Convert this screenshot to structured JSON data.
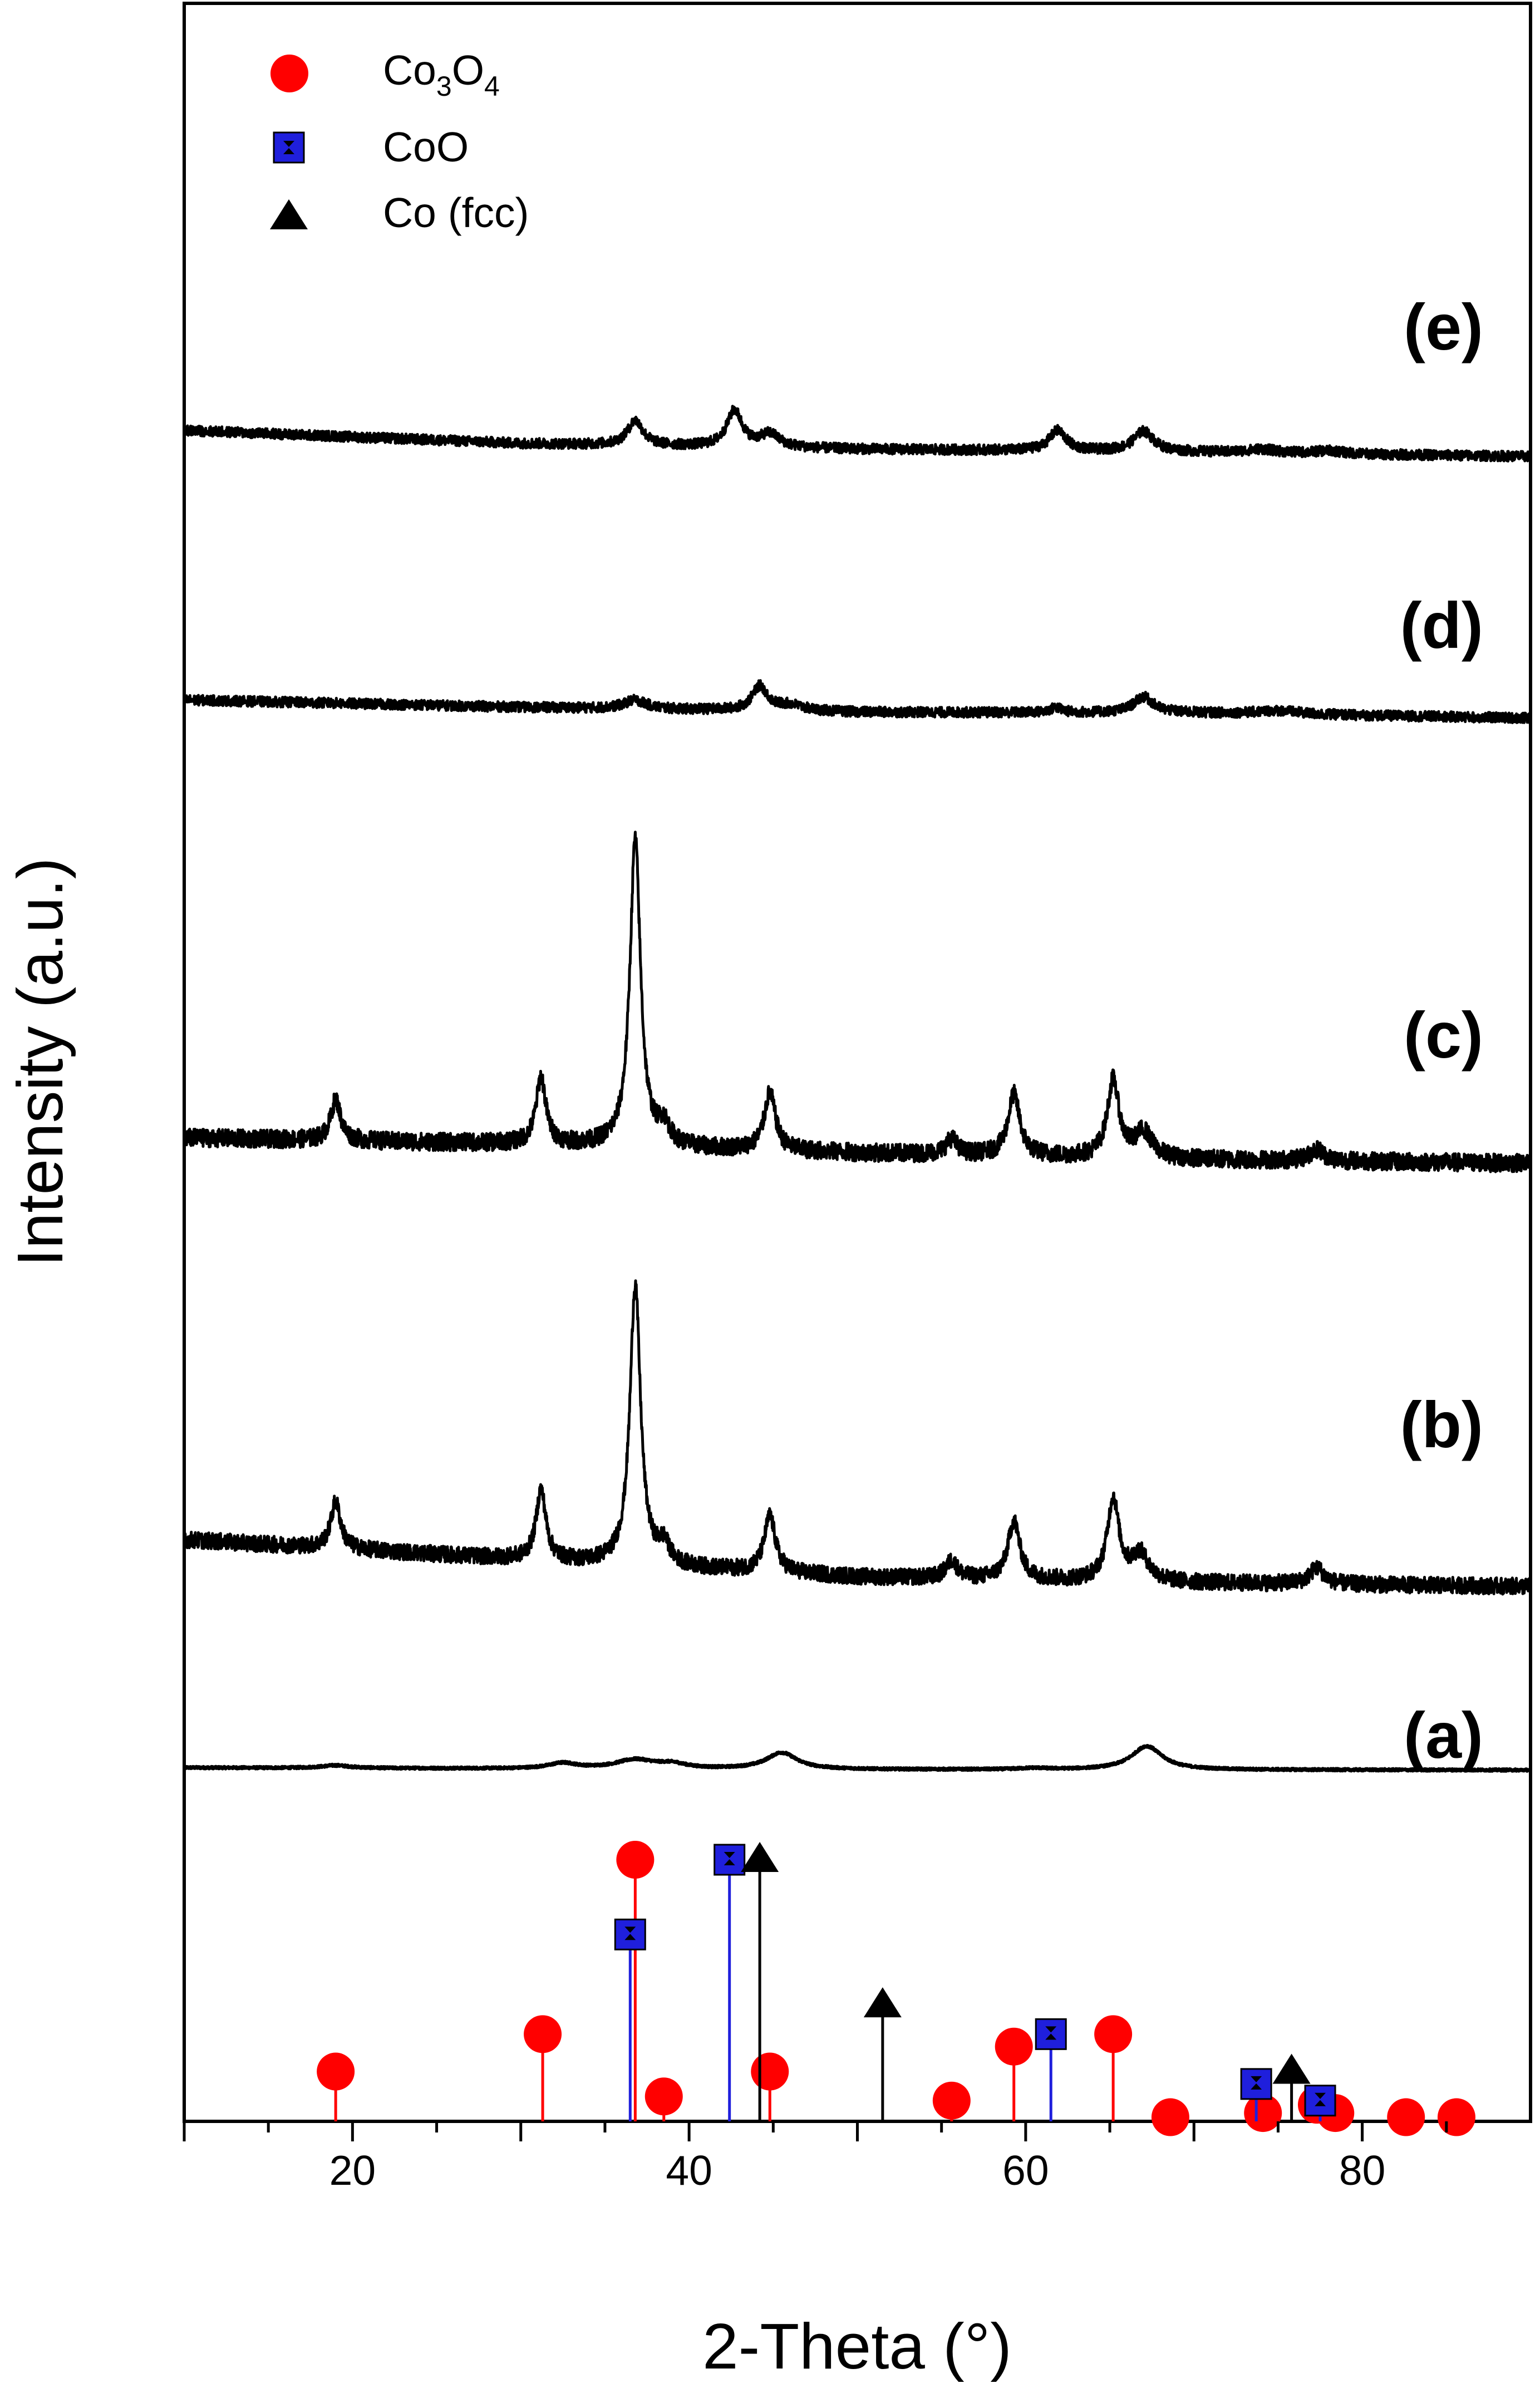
{
  "chart_data": {
    "type": "line",
    "title": "",
    "xlabel": "2-Theta (°)",
    "ylabel": "Intensity (a.u.)",
    "xlim": [
      10,
      90
    ],
    "xticks": [
      20,
      40,
      60,
      80
    ],
    "yticks": "none",
    "colors": {
      "co3o4": "#ff0000",
      "coo": "#1f1fdc",
      "co": "#000000",
      "trace": "#000000"
    },
    "legend": {
      "placement": "top-left",
      "entries": [
        {
          "key": "co3o4",
          "marker": "circle",
          "label_main": "Co",
          "sub1": "3",
          "label_mid": "O",
          "sub2": "4"
        },
        {
          "key": "coo",
          "marker": "square",
          "label": "CoO"
        },
        {
          "key": "co",
          "marker": "triangle",
          "label": "Co (fcc)"
        }
      ]
    },
    "series": [
      {
        "name": "(a)",
        "noise": 0.25,
        "scale": 8,
        "baseline": [
          [
            10,
            0.55
          ],
          [
            30,
            0.3
          ],
          [
            50,
            0.12
          ],
          [
            70,
            0.05
          ],
          [
            90,
            0.0
          ]
        ],
        "peaks": [
          [
            19.0,
            0.6,
            1.0
          ],
          [
            32.5,
            1.2,
            1.0
          ],
          [
            36.8,
            2.0,
            1.4
          ],
          [
            39.0,
            1.0,
            1.0
          ],
          [
            45.5,
            3.7,
            1.1
          ],
          [
            60.5,
            0.3,
            1.0
          ],
          [
            67.2,
            5.3,
            1.1
          ]
        ]
      },
      {
        "name": "(b)",
        "noise": 0.7,
        "scale": 21,
        "baseline": [
          [
            10,
            4.0
          ],
          [
            30,
            2.3
          ],
          [
            50,
            0.8
          ],
          [
            70,
            0.3
          ],
          [
            90,
            0.0
          ]
        ],
        "peaks": [
          [
            19.0,
            4.0,
            0.35
          ],
          [
            31.2,
            6.0,
            0.35
          ],
          [
            36.8,
            24.0,
            0.38
          ],
          [
            38.5,
            1.6,
            0.4
          ],
          [
            44.8,
            4.8,
            0.4
          ],
          [
            55.6,
            1.5,
            0.4
          ],
          [
            59.3,
            5.0,
            0.42
          ],
          [
            65.2,
            7.0,
            0.42
          ],
          [
            66.8,
            2.3,
            0.6
          ],
          [
            77.3,
            1.4,
            0.5
          ]
        ]
      },
      {
        "name": "(c)",
        "noise": 0.7,
        "scale": 23,
        "baseline": [
          [
            10,
            2.0
          ],
          [
            30,
            1.5
          ],
          [
            50,
            0.8
          ],
          [
            70,
            0.3
          ],
          [
            90,
            0.0
          ]
        ],
        "peaks": [
          [
            19.0,
            3.2,
            0.35
          ],
          [
            31.2,
            5.2,
            0.35
          ],
          [
            36.8,
            24.0,
            0.38
          ],
          [
            38.5,
            1.5,
            0.4
          ],
          [
            44.8,
            4.5,
            0.4
          ],
          [
            55.6,
            1.2,
            0.4
          ],
          [
            59.3,
            4.8,
            0.42
          ],
          [
            65.2,
            6.0,
            0.42
          ],
          [
            67.0,
            2.0,
            0.6
          ],
          [
            77.3,
            0.9,
            0.5
          ]
        ]
      },
      {
        "name": "(d)",
        "noise": 0.7,
        "scale": 13,
        "baseline": [
          [
            10,
            2.5
          ],
          [
            30,
            1.5
          ],
          [
            50,
            0.8
          ],
          [
            70,
            0.7
          ],
          [
            90,
            0.0
          ]
        ],
        "peaks": [
          [
            36.8,
            1.2,
            0.8
          ],
          [
            44.2,
            3.3,
            0.55
          ],
          [
            46.0,
            0.8,
            1.0
          ],
          [
            61.8,
            0.7,
            0.4
          ],
          [
            67.0,
            2.2,
            0.7
          ],
          [
            75.0,
            0.5,
            1.5
          ]
        ]
      },
      {
        "name": "(e)",
        "noise": 0.7,
        "scale": 13,
        "baseline": [
          [
            10,
            3.6
          ],
          [
            30,
            1.8
          ],
          [
            50,
            1.0
          ],
          [
            70,
            0.6
          ],
          [
            90,
            0.0
          ]
        ],
        "peaks": [
          [
            36.8,
            3.4,
            0.55
          ],
          [
            42.7,
            5.0,
            0.55
          ],
          [
            44.8,
            1.8,
            0.7
          ],
          [
            61.9,
            2.8,
            0.6
          ],
          [
            67.0,
            2.8,
            0.7
          ],
          [
            74.0,
            0.5,
            1.0
          ],
          [
            78.0,
            0.4,
            1.0
          ]
        ]
      }
    ],
    "reference_sticks": {
      "co3o4": [
        [
          19.0,
          12
        ],
        [
          31.3,
          21
        ],
        [
          36.8,
          63
        ],
        [
          38.5,
          6
        ],
        [
          44.8,
          12
        ],
        [
          55.6,
          5
        ],
        [
          59.3,
          18
        ],
        [
          65.2,
          21
        ],
        [
          68.6,
          1
        ],
        [
          74.1,
          2
        ],
        [
          77.3,
          4
        ],
        [
          78.4,
          2
        ],
        [
          82.6,
          1
        ],
        [
          85.6,
          1
        ]
      ],
      "coo": [
        [
          36.5,
          45
        ],
        [
          42.4,
          63
        ],
        [
          61.5,
          21
        ],
        [
          73.7,
          9
        ],
        [
          77.5,
          5
        ]
      ],
      "co": [
        [
          44.2,
          63
        ],
        [
          51.5,
          28
        ],
        [
          75.8,
          12
        ]
      ],
      "ylim": [
        0,
        63
      ]
    }
  },
  "panel_labels": [
    "(a)",
    "(b)",
    "(c)",
    "(d)",
    "(e)"
  ]
}
